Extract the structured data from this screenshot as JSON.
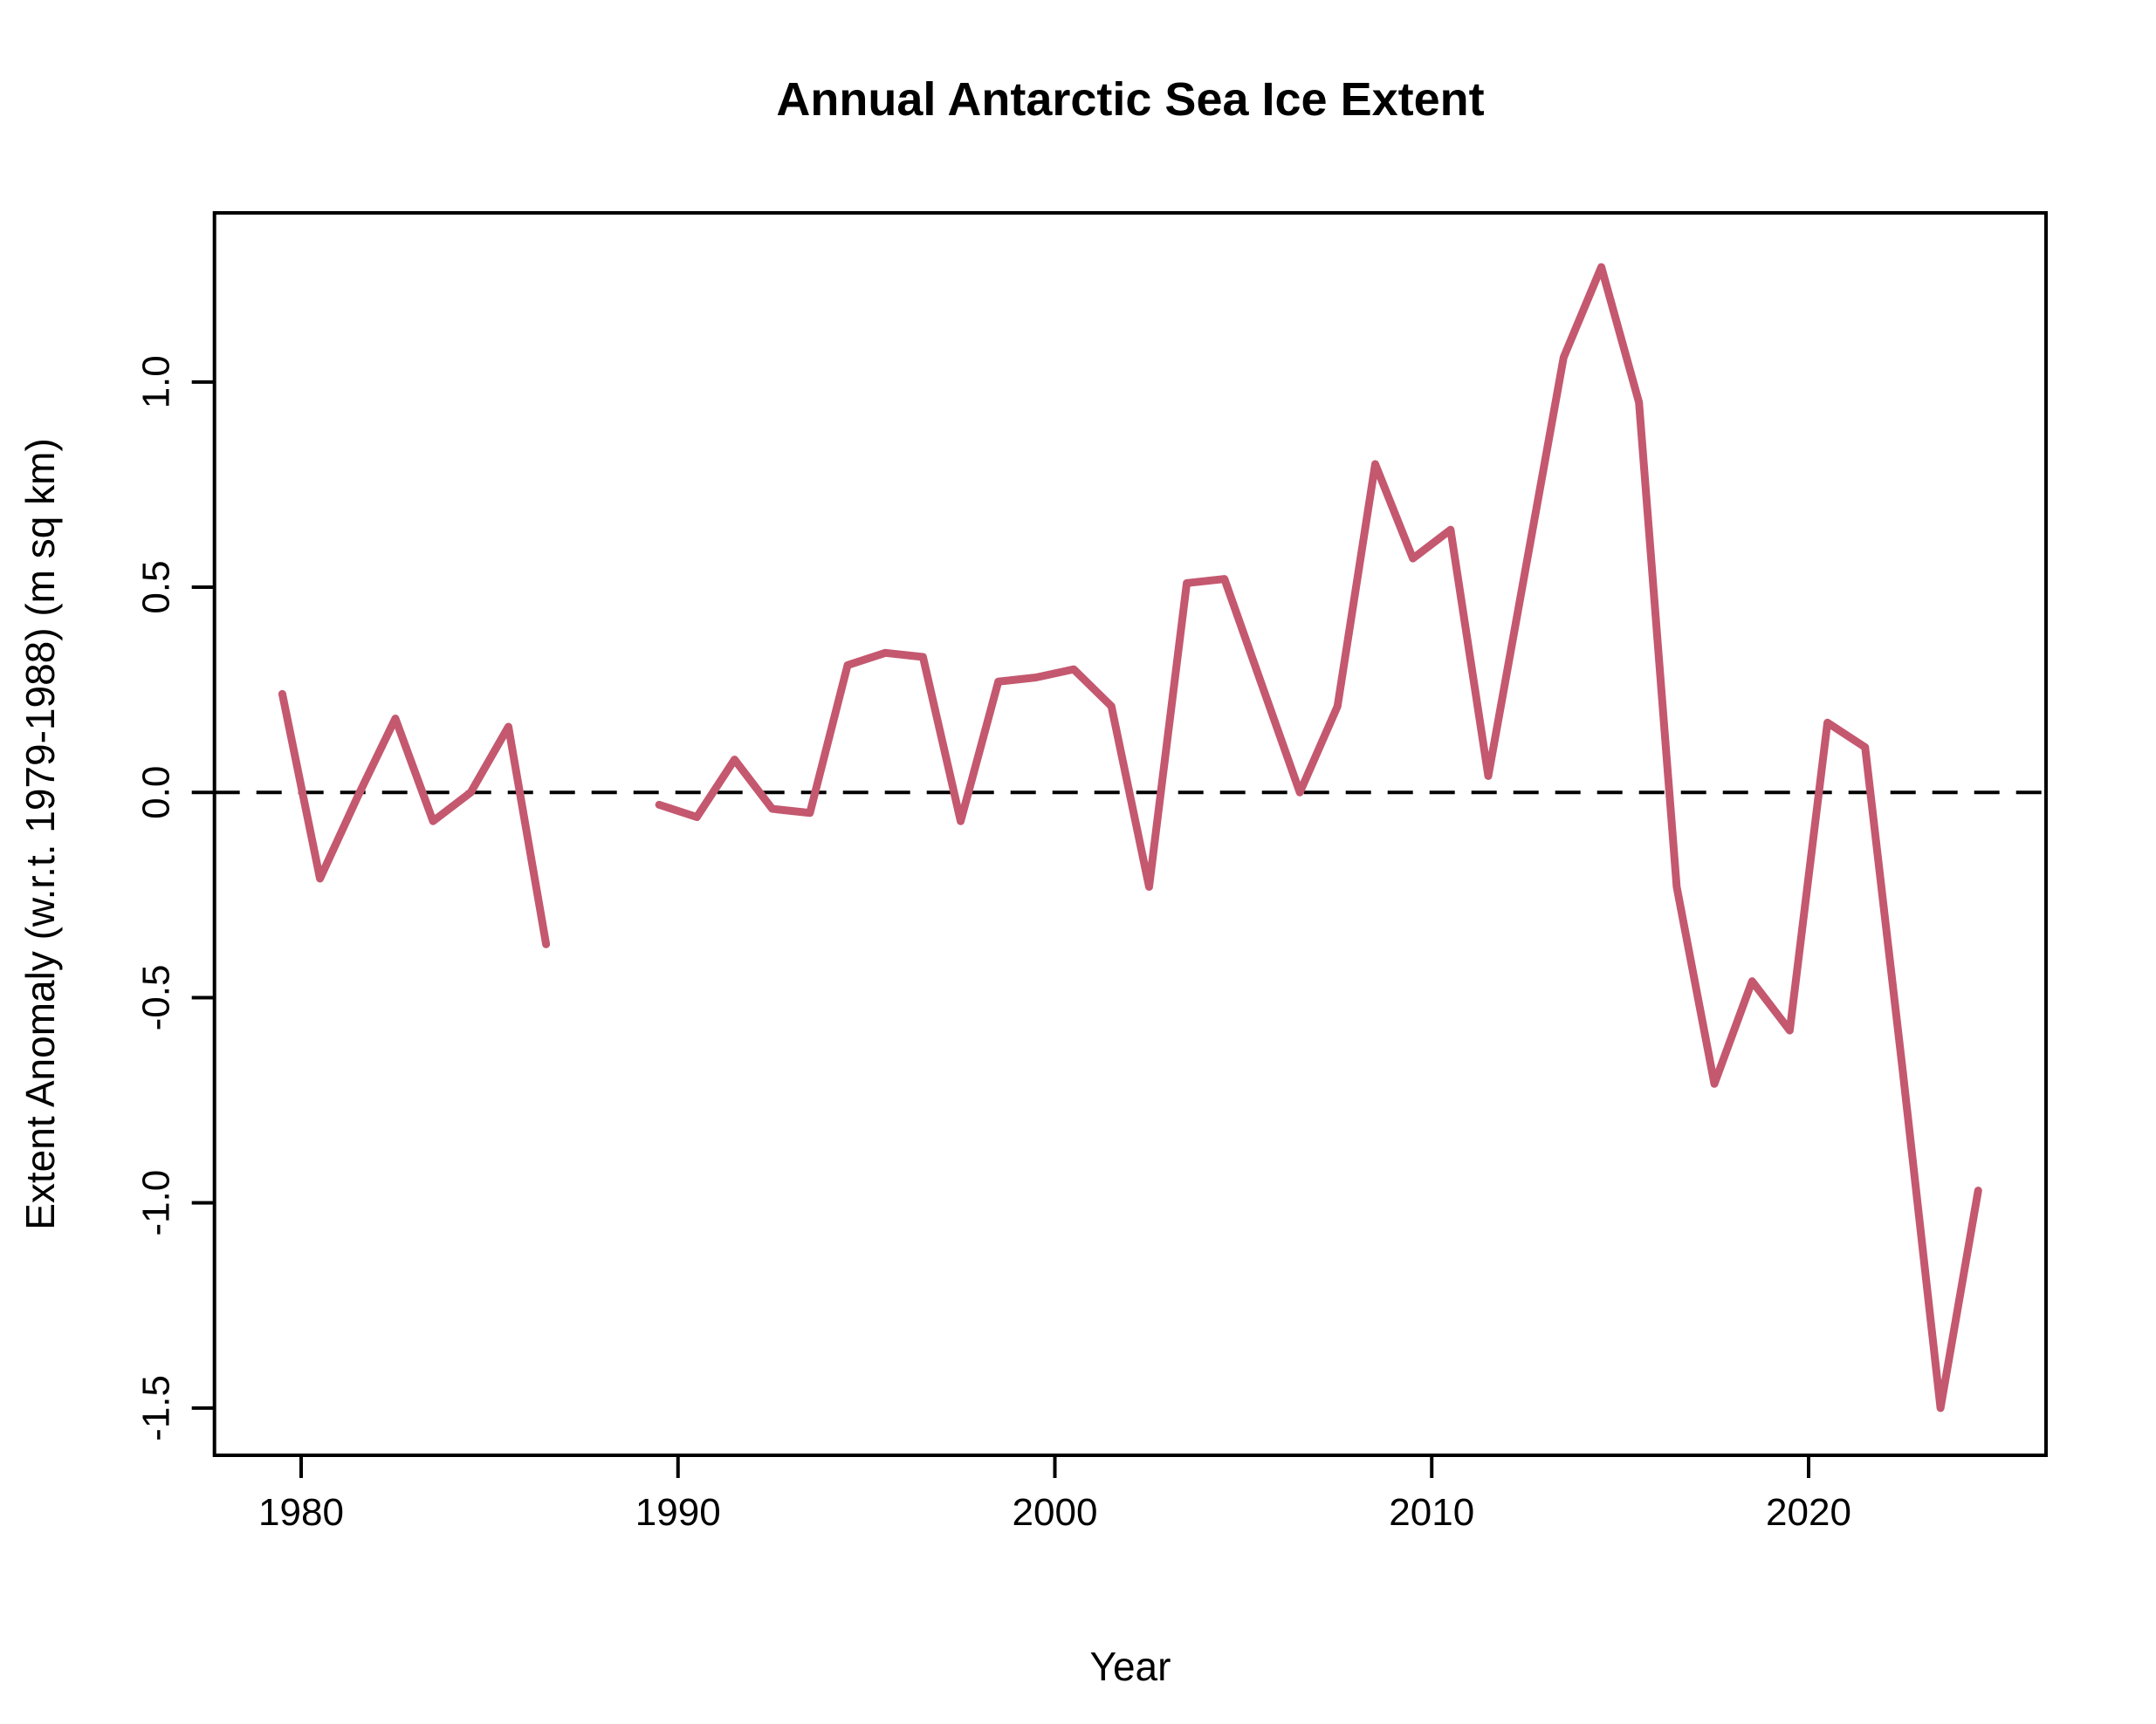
{
  "figure": {
    "title": "Annual Antarctic Sea Ice Extent",
    "x_axis_label": "Year",
    "y_axis_label": "Extent Anomaly (w.r.t. 1979-1988) (m sq km)"
  },
  "chart_data": {
    "type": "line",
    "title": "Annual Antarctic Sea Ice Extent",
    "xlabel": "Year",
    "ylabel": "Extent Anomaly (w.r.t. 1979-1988) (m sq km)",
    "x": [
      1979,
      1980,
      1981,
      1982,
      1983,
      1984,
      1985,
      1986,
      1987,
      1988,
      1989,
      1990,
      1991,
      1992,
      1993,
      1994,
      1995,
      1996,
      1997,
      1998,
      1999,
      2000,
      2001,
      2002,
      2003,
      2004,
      2005,
      2006,
      2007,
      2008,
      2009,
      2010,
      2011,
      2012,
      2013,
      2014,
      2015,
      2016,
      2017,
      2018,
      2019,
      2020,
      2021,
      2022,
      2023,
      2024
    ],
    "values": [
      0.24,
      -0.21,
      -0.01,
      0.18,
      -0.07,
      0.0,
      0.16,
      -0.37,
      null,
      null,
      -0.03,
      -0.06,
      0.08,
      -0.04,
      -0.05,
      0.31,
      0.34,
      0.33,
      -0.07,
      0.27,
      0.28,
      0.3,
      0.21,
      -0.23,
      0.51,
      0.52,
      0.26,
      0.0,
      0.21,
      0.8,
      0.57,
      0.64,
      0.04,
      0.55,
      1.06,
      1.28,
      0.95,
      -0.23,
      -0.71,
      -0.46,
      -0.58,
      0.17,
      0.11,
      -0.68,
      -1.5,
      -0.97
    ],
    "missing_years": [
      1987,
      1988
    ],
    "point_x_offset": 0.5,
    "xlim": [
      1977.7,
      2026.3
    ],
    "ylim": [
      -1.615,
      1.412
    ],
    "x_ticks": [
      1980,
      1990,
      2000,
      2010,
      2020
    ],
    "x_tick_labels": [
      "1980",
      "1990",
      "2000",
      "2010",
      "2020"
    ],
    "y_ticks": [
      1.0,
      0.5,
      0.0,
      -0.5,
      -1.0,
      -1.5
    ],
    "y_tick_labels": [
      "1.0",
      "0.5",
      "0.0",
      "-0.5",
      "-1.0",
      "-1.5"
    ],
    "zero_reference_line": 0,
    "line_color": "#C4586F",
    "axis_color": "#000000",
    "grid": false,
    "legend": "none"
  }
}
